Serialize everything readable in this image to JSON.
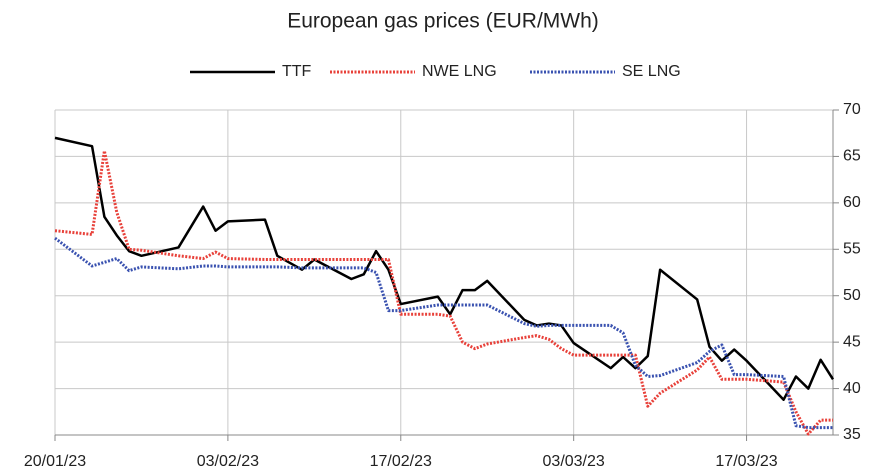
{
  "chart_data": {
    "type": "line",
    "title": "European gas prices (EUR/MWh)",
    "x": [
      "20/01/23",
      "23/01/23",
      "24/01/23",
      "25/01/23",
      "26/01/23",
      "27/01/23",
      "30/01/23",
      "01/02/23",
      "02/02/23",
      "03/02/23",
      "06/02/23",
      "07/02/23",
      "09/02/23",
      "10/02/23",
      "13/02/23",
      "14/02/23",
      "15/02/23",
      "16/02/23",
      "17/02/23",
      "20/02/23",
      "21/02/23",
      "22/02/23",
      "23/02/23",
      "24/02/23",
      "27/02/23",
      "28/02/23",
      "01/03/23",
      "02/03/23",
      "03/03/23",
      "06/03/23",
      "07/03/23",
      "08/03/23",
      "09/03/23",
      "10/03/23",
      "13/03/23",
      "14/03/23",
      "15/03/23",
      "16/03/23",
      "17/03/23",
      "20/03/23",
      "21/03/23",
      "22/03/23",
      "23/03/23",
      "24/03/23"
    ],
    "series": [
      {
        "name": "TTF",
        "color": "#000000",
        "style": "solid",
        "values": [
          67.0,
          66.1,
          58.5,
          56.5,
          54.8,
          54.3,
          55.2,
          59.6,
          57.0,
          58.0,
          58.2,
          54.3,
          52.8,
          53.9,
          51.8,
          52.3,
          54.8,
          52.8,
          49.1,
          49.9,
          48.0,
          50.6,
          50.6,
          51.6,
          47.4,
          46.8,
          47.0,
          46.8,
          44.9,
          42.2,
          43.4,
          42.2,
          43.5,
          52.8,
          49.6,
          44.5,
          43.0,
          44.2,
          43.0,
          38.8,
          41.3,
          40.0,
          43.1,
          41.0
        ]
      },
      {
        "name": "NWE LNG",
        "color": "#e8413a",
        "style": "dotted",
        "values": [
          57.0,
          56.6,
          65.6,
          59.0,
          55.0,
          54.9,
          54.3,
          54.0,
          54.7,
          54.0,
          53.9,
          53.9,
          53.9,
          53.9,
          53.9,
          53.9,
          53.9,
          53.9,
          48.0,
          48.0,
          47.8,
          45.0,
          44.3,
          44.8,
          45.5,
          45.7,
          45.3,
          44.3,
          43.6,
          43.6,
          43.6,
          43.6,
          38.1,
          39.5,
          42.0,
          43.4,
          41.0,
          41.0,
          41.0,
          40.7,
          37.5,
          35.1,
          36.6,
          36.6
        ]
      },
      {
        "name": "SE LNG",
        "color": "#3a52b0",
        "style": "dotted",
        "values": [
          56.2,
          53.2,
          53.6,
          54.0,
          52.7,
          53.1,
          52.9,
          53.2,
          53.2,
          53.1,
          53.1,
          53.1,
          53.0,
          53.0,
          53.0,
          53.0,
          52.5,
          48.4,
          48.4,
          49.0,
          49.0,
          49.0,
          49.0,
          49.0,
          47.0,
          46.7,
          46.8,
          46.8,
          46.8,
          46.8,
          46.0,
          42.5,
          41.3,
          41.4,
          42.8,
          44.0,
          44.7,
          41.5,
          41.5,
          41.3,
          36.0,
          35.8,
          35.8,
          35.8
        ]
      }
    ],
    "xlim": [
      "20/01/23",
      "24/03/23"
    ],
    "xticks": [
      "20/01/23",
      "03/02/23",
      "17/02/23",
      "03/03/23",
      "17/03/23"
    ],
    "ylim": [
      35,
      70
    ],
    "yticks": [
      35,
      40,
      45,
      50,
      55,
      60,
      65,
      70
    ],
    "grid": true,
    "y_axis_side": "right",
    "legend": "top"
  }
}
